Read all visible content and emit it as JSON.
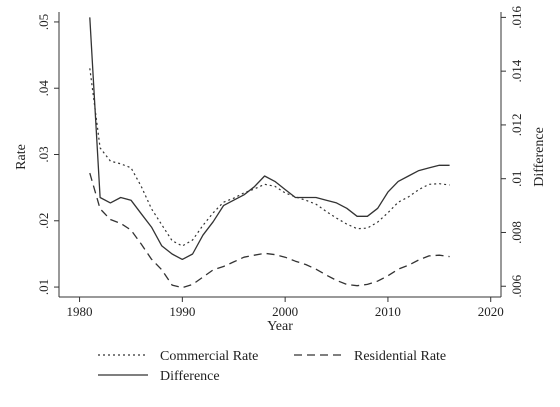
{
  "chart_data": {
    "type": "line",
    "title": "",
    "xlabel": "Year",
    "ylabel_left": "Rate",
    "ylabel_right": "Difference",
    "xlim": [
      1978,
      2021
    ],
    "ylim_left": [
      0.0085,
      0.0515
    ],
    "ylim_right": [
      0.0056,
      0.0162
    ],
    "x_ticks": [
      "1980",
      "1990",
      "2000",
      "2010",
      "2020"
    ],
    "y_ticks_left": [
      ".01",
      ".02",
      ".03",
      ".04",
      ".05"
    ],
    "y_ticks_right": [
      ".006",
      ".008",
      ".01",
      ".012",
      ".014",
      ".016"
    ],
    "grid": false,
    "legend_position": "bottom",
    "x": [
      1981,
      1982,
      1983,
      1984,
      1985,
      1986,
      1987,
      1988,
      1989,
      1990,
      1991,
      1992,
      1993,
      1994,
      1995,
      1996,
      1997,
      1998,
      1999,
      2000,
      2001,
      2002,
      2003,
      2004,
      2005,
      2006,
      2007,
      2008,
      2009,
      2010,
      2011,
      2012,
      2013,
      2014,
      2015,
      2016
    ],
    "series": [
      {
        "name": "Commercial Rate",
        "axis": "left",
        "style": "dotted",
        "values": [
          0.043,
          0.031,
          0.029,
          0.0286,
          0.028,
          0.0252,
          0.0218,
          0.0194,
          0.017,
          0.0162,
          0.0171,
          0.0193,
          0.0212,
          0.0228,
          0.0234,
          0.0242,
          0.0248,
          0.0255,
          0.0252,
          0.0242,
          0.0236,
          0.0231,
          0.0225,
          0.0214,
          0.0204,
          0.0195,
          0.0188,
          0.0189,
          0.0198,
          0.0212,
          0.0228,
          0.0236,
          0.0247,
          0.0255,
          0.0256,
          0.0254
        ]
      },
      {
        "name": "Residential Rate",
        "axis": "left",
        "style": "dashed",
        "values": [
          0.0272,
          0.0218,
          0.0202,
          0.0196,
          0.0186,
          0.0165,
          0.0142,
          0.0126,
          0.0103,
          0.0099,
          0.0104,
          0.0115,
          0.0126,
          0.0131,
          0.0138,
          0.0145,
          0.0148,
          0.0151,
          0.0149,
          0.0145,
          0.0139,
          0.0134,
          0.0127,
          0.0118,
          0.011,
          0.0104,
          0.0102,
          0.0104,
          0.0109,
          0.0117,
          0.0127,
          0.0133,
          0.0141,
          0.0147,
          0.0148,
          0.0146
        ]
      },
      {
        "name": "Difference",
        "axis": "right",
        "style": "solid",
        "values": [
          0.016,
          0.0093,
          0.0091,
          0.0093,
          0.0092,
          0.0087,
          0.0082,
          0.0075,
          0.0072,
          0.007,
          0.0072,
          0.0079,
          0.0084,
          0.009,
          0.0092,
          0.0094,
          0.0097,
          0.0101,
          0.0099,
          0.0096,
          0.0093,
          0.0093,
          0.0093,
          0.0092,
          0.0091,
          0.0089,
          0.0086,
          0.0086,
          0.0089,
          0.0095,
          0.0099,
          0.0101,
          0.0103,
          0.0104,
          0.0105,
          0.0105
        ]
      }
    ]
  }
}
